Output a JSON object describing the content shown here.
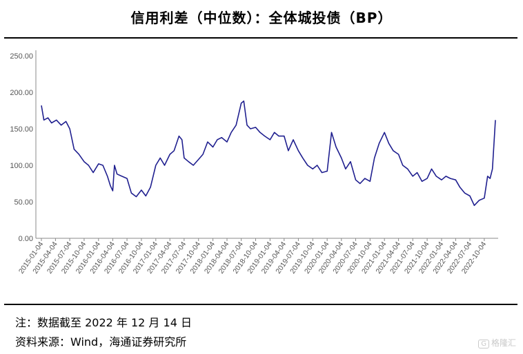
{
  "title": "信用利差（中位数）：全体城投债（BP）",
  "notes": {
    "line1": "注：数据截至 2022 年 12 月 14 日",
    "line2": "资料来源：Wind，海通证券研究所"
  },
  "watermark": "格隆汇",
  "chart_data": {
    "type": "line",
    "title": "信用利差（中位数）：全体城投债（BP）",
    "xlabel": "",
    "ylabel": "",
    "ylim": [
      0,
      250
    ],
    "yticks": [
      "0.00",
      "50.00",
      "100.00",
      "150.00",
      "200.00",
      "250.00"
    ],
    "xticks": [
      "2015-01-04",
      "2015-04-04",
      "2015-07-04",
      "2015-10-04",
      "2016-01-04",
      "2016-04-04",
      "2016-07-04",
      "2016-10-04",
      "2017-01-04",
      "2017-04-04",
      "2017-07-04",
      "2017-10-04",
      "2018-01-04",
      "2018-04-04",
      "2018-07-04",
      "2018-10-04",
      "2019-01-04",
      "2019-04-04",
      "2019-07-04",
      "2019-10-04",
      "2020-01-04",
      "2020-04-04",
      "2020-07-04",
      "2020-10-04",
      "2021-01-04",
      "2021-04-04",
      "2021-07-04",
      "2021-10-04",
      "2022-01-04",
      "2022-04-04",
      "2022-07-04",
      "2022-10-04"
    ],
    "grid": false,
    "line_color": "#1f1f8f",
    "series": [
      {
        "points": [
          [
            "2015-01-04",
            182
          ],
          [
            "2015-01-20",
            162
          ],
          [
            "2015-02-15",
            165
          ],
          [
            "2015-03-10",
            158
          ],
          [
            "2015-04-10",
            162
          ],
          [
            "2015-05-10",
            155
          ],
          [
            "2015-06-10",
            160
          ],
          [
            "2015-07-04",
            150
          ],
          [
            "2015-08-01",
            122
          ],
          [
            "2015-09-01",
            115
          ],
          [
            "2015-10-04",
            105
          ],
          [
            "2015-11-01",
            100
          ],
          [
            "2015-12-01",
            90
          ],
          [
            "2016-01-04",
            102
          ],
          [
            "2016-02-01",
            100
          ],
          [
            "2016-03-01",
            85
          ],
          [
            "2016-03-20",
            72
          ],
          [
            "2016-04-04",
            65
          ],
          [
            "2016-04-15",
            100
          ],
          [
            "2016-05-01",
            88
          ],
          [
            "2016-06-01",
            85
          ],
          [
            "2016-07-04",
            82
          ],
          [
            "2016-08-01",
            62
          ],
          [
            "2016-09-01",
            57
          ],
          [
            "2016-10-04",
            66
          ],
          [
            "2016-11-01",
            58
          ],
          [
            "2016-12-01",
            70
          ],
          [
            "2017-01-04",
            100
          ],
          [
            "2017-02-01",
            110
          ],
          [
            "2017-03-01",
            100
          ],
          [
            "2017-04-04",
            115
          ],
          [
            "2017-05-01",
            120
          ],
          [
            "2017-06-01",
            140
          ],
          [
            "2017-06-20",
            135
          ],
          [
            "2017-07-04",
            110
          ],
          [
            "2017-08-01",
            105
          ],
          [
            "2017-09-01",
            100
          ],
          [
            "2017-10-04",
            108
          ],
          [
            "2017-11-01",
            115
          ],
          [
            "2017-12-01",
            132
          ],
          [
            "2018-01-04",
            125
          ],
          [
            "2018-02-01",
            135
          ],
          [
            "2018-03-01",
            138
          ],
          [
            "2018-04-04",
            132
          ],
          [
            "2018-05-01",
            145
          ],
          [
            "2018-06-01",
            155
          ],
          [
            "2018-07-04",
            185
          ],
          [
            "2018-07-20",
            188
          ],
          [
            "2018-08-10",
            155
          ],
          [
            "2018-09-01",
            150
          ],
          [
            "2018-10-04",
            152
          ],
          [
            "2018-11-01",
            145
          ],
          [
            "2018-12-01",
            140
          ],
          [
            "2019-01-04",
            135
          ],
          [
            "2019-02-01",
            145
          ],
          [
            "2019-03-01",
            140
          ],
          [
            "2019-04-04",
            140
          ],
          [
            "2019-05-01",
            120
          ],
          [
            "2019-06-01",
            135
          ],
          [
            "2019-07-04",
            120
          ],
          [
            "2019-08-01",
            110
          ],
          [
            "2019-09-01",
            100
          ],
          [
            "2019-10-04",
            95
          ],
          [
            "2019-11-01",
            100
          ],
          [
            "2019-12-01",
            90
          ],
          [
            "2020-01-04",
            92
          ],
          [
            "2020-02-01",
            145
          ],
          [
            "2020-03-01",
            125
          ],
          [
            "2020-04-04",
            110
          ],
          [
            "2020-05-01",
            95
          ],
          [
            "2020-06-01",
            105
          ],
          [
            "2020-07-04",
            80
          ],
          [
            "2020-08-01",
            75
          ],
          [
            "2020-09-01",
            82
          ],
          [
            "2020-10-04",
            78
          ],
          [
            "2020-11-01",
            110
          ],
          [
            "2020-12-01",
            130
          ],
          [
            "2021-01-04",
            145
          ],
          [
            "2021-02-01",
            130
          ],
          [
            "2021-03-01",
            120
          ],
          [
            "2021-04-04",
            115
          ],
          [
            "2021-05-01",
            100
          ],
          [
            "2021-06-01",
            95
          ],
          [
            "2021-07-04",
            85
          ],
          [
            "2021-08-01",
            90
          ],
          [
            "2021-09-01",
            78
          ],
          [
            "2021-10-04",
            82
          ],
          [
            "2021-11-01",
            95
          ],
          [
            "2021-12-01",
            85
          ],
          [
            "2022-01-04",
            80
          ],
          [
            "2022-02-01",
            85
          ],
          [
            "2022-03-01",
            82
          ],
          [
            "2022-04-04",
            80
          ],
          [
            "2022-05-01",
            70
          ],
          [
            "2022-06-01",
            62
          ],
          [
            "2022-07-04",
            58
          ],
          [
            "2022-08-01",
            45
          ],
          [
            "2022-09-01",
            52
          ],
          [
            "2022-10-04",
            55
          ],
          [
            "2022-10-25",
            85
          ],
          [
            "2022-11-10",
            82
          ],
          [
            "2022-11-25",
            95
          ],
          [
            "2022-12-14",
            162
          ]
        ]
      }
    ]
  }
}
